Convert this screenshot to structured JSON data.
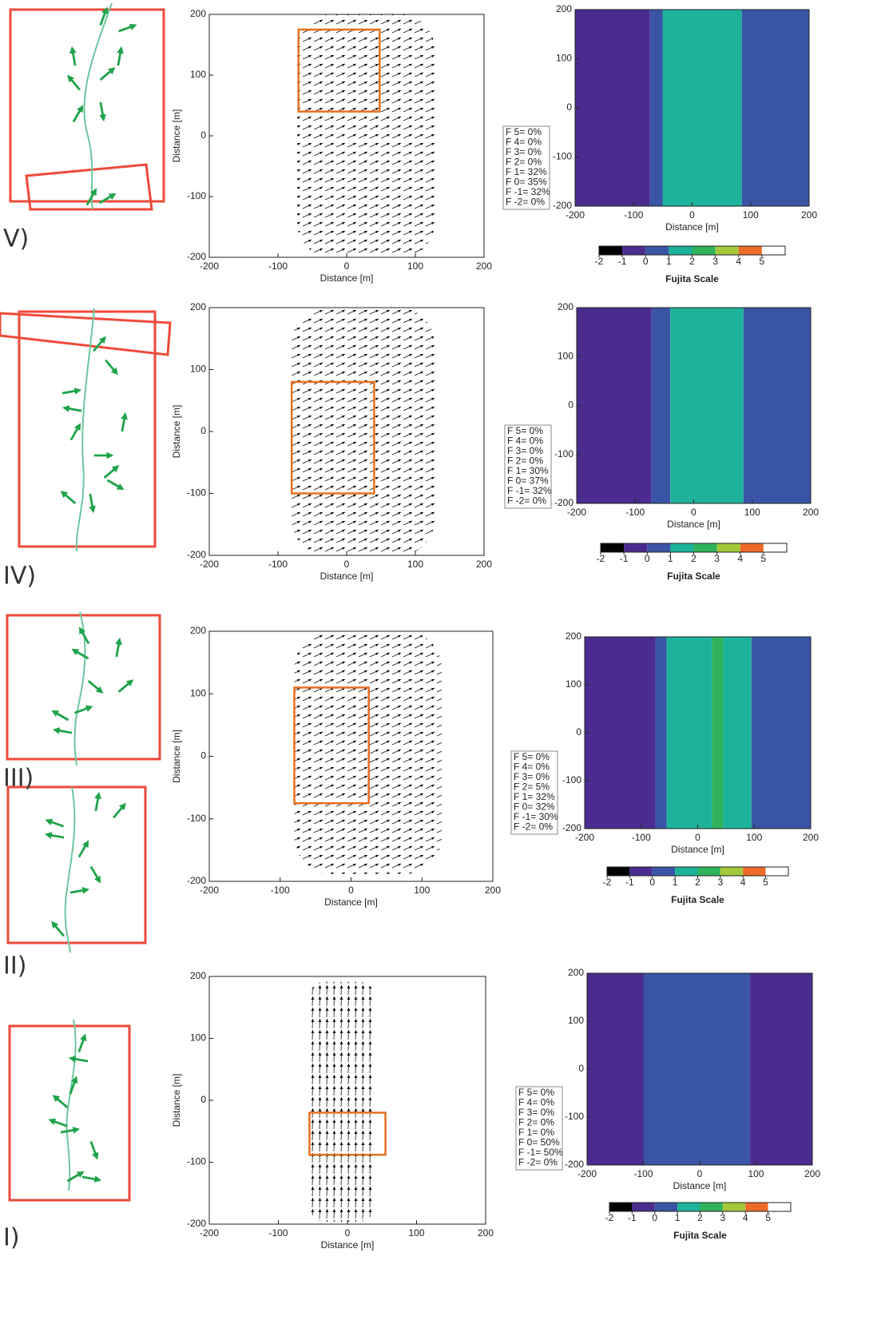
{
  "panel_labels": [
    "V)",
    "IV)",
    "III)",
    "II)",
    "I)"
  ],
  "chart_data": [
    {
      "type": "quiver",
      "xlabel": "Distance [m]",
      "ylabel": "Distance [m]",
      "xlim": [
        -200,
        200
      ],
      "ylim": [
        -200,
        200
      ],
      "xticks": [
        -200,
        -100,
        0,
        100,
        200
      ],
      "yticks": [
        -200,
        -100,
        0,
        100,
        200
      ],
      "box": {
        "x": [
          -70,
          48
        ],
        "y": [
          40,
          175
        ]
      },
      "box_color": "#e8701e"
    },
    {
      "type": "band",
      "xlabel": "Distance [m]",
      "xlim": [
        -200,
        200
      ],
      "ylim": [
        -200,
        200
      ],
      "xticks": [
        -200,
        -100,
        0,
        100,
        200
      ],
      "yticks": [
        -200,
        -100,
        0,
        100,
        200
      ],
      "bands": [
        {
          "from": -200,
          "to": -72,
          "level": -1
        },
        {
          "from": -72,
          "to": -50,
          "level": 0
        },
        {
          "from": -50,
          "to": 85,
          "level": 1
        },
        {
          "from": 85,
          "to": 200,
          "level": 0
        }
      ],
      "stats": [
        "F 5= 0%",
        "F 4= 0%",
        "F 3= 0%",
        "F 2= 0%",
        "F 1= 32%",
        "F 0= 35%",
        "F -1= 32%",
        "F -2= 0%"
      ],
      "colorbar": {
        "label": "Fujita Scale",
        "clim": [
          -2,
          6
        ],
        "ticks": [
          -2,
          -1,
          0,
          1,
          2,
          3,
          4,
          5
        ],
        "colors": [
          "#000000",
          "#4b2c8e",
          "#3a55a5",
          "#1cb39a",
          "#2fb35a",
          "#a3c93a",
          "#ee6a2a",
          "#ffffff"
        ]
      }
    },
    {
      "type": "quiver",
      "xlabel": "Distance [m]",
      "ylabel": "Distance [m]",
      "xlim": [
        -200,
        200
      ],
      "ylim": [
        -200,
        200
      ],
      "xticks": [
        -200,
        -100,
        0,
        100,
        200
      ],
      "yticks": [
        -200,
        -100,
        0,
        100,
        200
      ],
      "box": {
        "x": [
          -80,
          40
        ],
        "y": [
          -100,
          80
        ]
      },
      "box_color": "#e8701e"
    },
    {
      "type": "band",
      "xlabel": "Distance [m]",
      "xlim": [
        -200,
        200
      ],
      "ylim": [
        -200,
        200
      ],
      "xticks": [
        -200,
        -100,
        0,
        100,
        200
      ],
      "yticks": [
        -200,
        -100,
        0,
        100,
        200
      ],
      "bands": [
        {
          "from": -200,
          "to": -72,
          "level": -1
        },
        {
          "from": -72,
          "to": -40,
          "level": 0
        },
        {
          "from": -40,
          "to": 85,
          "level": 1
        },
        {
          "from": 85,
          "to": 200,
          "level": 0
        }
      ],
      "stats": [
        "F 5= 0%",
        "F 4= 0%",
        "F 3= 0%",
        "F 2= 0%",
        "F 1= 30%",
        "F 0= 37%",
        "F -1= 32%",
        "F -2= 0%"
      ],
      "colorbar": {
        "label": "Fujita Scale",
        "clim": [
          -2,
          6
        ],
        "ticks": [
          -2,
          -1,
          0,
          1,
          2,
          3,
          4,
          5
        ],
        "colors": [
          "#000000",
          "#4b2c8e",
          "#3a55a5",
          "#1cb39a",
          "#2fb35a",
          "#a3c93a",
          "#ee6a2a",
          "#ffffff"
        ]
      }
    },
    {
      "type": "quiver",
      "xlabel": "Distance [m]",
      "ylabel": "Distance [m]",
      "xlim": [
        -200,
        200
      ],
      "ylim": [
        -200,
        200
      ],
      "xticks": [
        -200,
        -100,
        0,
        100,
        200
      ],
      "yticks": [
        -200,
        -100,
        0,
        100,
        200
      ],
      "box": {
        "x": [
          -80,
          25
        ],
        "y": [
          -75,
          110
        ]
      },
      "box_color": "#e8701e"
    },
    {
      "type": "band",
      "xlabel": "Distance [m]",
      "xlim": [
        -200,
        200
      ],
      "ylim": [
        -200,
        200
      ],
      "xticks": [
        -200,
        -100,
        0,
        100,
        200
      ],
      "yticks": [
        -200,
        -100,
        0,
        100,
        200
      ],
      "bands": [
        {
          "from": -200,
          "to": -75,
          "level": -1
        },
        {
          "from": -75,
          "to": -55,
          "level": 0
        },
        {
          "from": -55,
          "to": 25,
          "level": 1
        },
        {
          "from": 25,
          "to": 45,
          "level": 2
        },
        {
          "from": 45,
          "to": 95,
          "level": 1
        },
        {
          "from": 95,
          "to": 200,
          "level": 0
        }
      ],
      "stats": [
        "F 5= 0%",
        "F 4= 0%",
        "F 3= 0%",
        "F 2= 5%",
        "F 1= 32%",
        "F 0= 32%",
        "F -1= 30%",
        "F -2= 0%"
      ],
      "colorbar": {
        "label": "Fujita Scale",
        "clim": [
          -2,
          6
        ],
        "ticks": [
          -2,
          -1,
          0,
          1,
          2,
          3,
          4,
          5
        ],
        "colors": [
          "#000000",
          "#4b2c8e",
          "#3a55a5",
          "#1cb39a",
          "#2fb35a",
          "#a3c93a",
          "#ee6a2a",
          "#ffffff"
        ]
      }
    },
    {
      "type": "quiver",
      "xlabel": "Distance [m]",
      "ylabel": "Distance [m]",
      "xlim": [
        -200,
        200
      ],
      "ylim": [
        -200,
        200
      ],
      "xticks": [
        -200,
        -100,
        0,
        100,
        200
      ],
      "yticks": [
        -200,
        -100,
        0,
        100,
        200
      ],
      "box": {
        "x": [
          -55,
          55
        ],
        "y": [
          -88,
          -20
        ]
      },
      "box_color": "#e8701e"
    },
    {
      "type": "band",
      "xlabel": "Distance [m]",
      "xlim": [
        -200,
        200
      ],
      "ylim": [
        -200,
        200
      ],
      "xticks": [
        -200,
        -100,
        0,
        100,
        200
      ],
      "yticks": [
        -200,
        -100,
        0,
        100,
        200
      ],
      "bands": [
        {
          "from": -200,
          "to": -100,
          "level": -1
        },
        {
          "from": -100,
          "to": 90,
          "level": 0
        },
        {
          "from": 90,
          "to": 200,
          "level": -1
        }
      ],
      "stats": [
        "F 5= 0%",
        "F 4= 0%",
        "F 3= 0%",
        "F 2= 0%",
        "F 1= 0%",
        "F 0= 50%",
        "F -1= 50%",
        "F -2= 0%"
      ],
      "colorbar": {
        "label": "Fujita Scale",
        "clim": [
          -2,
          6
        ],
        "ticks": [
          -2,
          -1,
          0,
          1,
          2,
          3,
          4,
          5
        ],
        "colors": [
          "#000000",
          "#4b2c8e",
          "#3a55a5",
          "#1cb39a",
          "#2fb35a",
          "#a3c93a",
          "#ee6a2a",
          "#ffffff"
        ]
      }
    }
  ]
}
